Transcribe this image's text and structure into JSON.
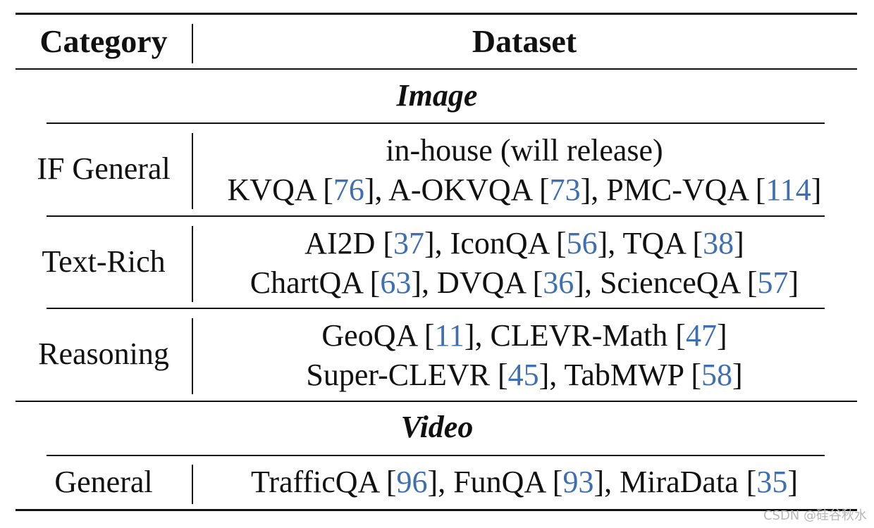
{
  "header": {
    "category": "Category",
    "dataset": "Dataset"
  },
  "sections": [
    {
      "title": "Image",
      "rows": [
        {
          "category": "IF General",
          "lines": [
            [
              {
                "t": "in-house (will release)"
              }
            ],
            [
              {
                "t": "KVQA ["
              },
              {
                "r": "76"
              },
              {
                "t": "], A-OKVQA ["
              },
              {
                "r": "73"
              },
              {
                "t": "], PMC-VQA ["
              },
              {
                "r": "114"
              },
              {
                "t": "]"
              }
            ]
          ]
        },
        {
          "category": "Text-Rich",
          "lines": [
            [
              {
                "t": "AI2D ["
              },
              {
                "r": "37"
              },
              {
                "t": "], IconQA ["
              },
              {
                "r": "56"
              },
              {
                "t": "], TQA ["
              },
              {
                "r": "38"
              },
              {
                "t": "]"
              }
            ],
            [
              {
                "t": "ChartQA ["
              },
              {
                "r": "63"
              },
              {
                "t": "], DVQA ["
              },
              {
                "r": "36"
              },
              {
                "t": "], ScienceQA ["
              },
              {
                "r": "57"
              },
              {
                "t": "]"
              }
            ]
          ]
        },
        {
          "category": "Reasoning",
          "lines": [
            [
              {
                "t": "GeoQA ["
              },
              {
                "r": "11"
              },
              {
                "t": "], CLEVR-Math ["
              },
              {
                "r": "47"
              },
              {
                "t": "]"
              }
            ],
            [
              {
                "t": "Super-CLEVR ["
              },
              {
                "r": "45"
              },
              {
                "t": "], TabMWP ["
              },
              {
                "r": "58"
              },
              {
                "t": "]"
              }
            ]
          ]
        }
      ]
    },
    {
      "title": "Video",
      "rows": [
        {
          "category": "General",
          "lines": [
            [
              {
                "t": "TrafficQA ["
              },
              {
                "r": "96"
              },
              {
                "t": "], FunQA ["
              },
              {
                "r": "93"
              },
              {
                "t": "], MiraData ["
              },
              {
                "r": "35"
              },
              {
                "t": "]"
              }
            ]
          ]
        }
      ]
    }
  ],
  "colors": {
    "text": "#111111",
    "reference": "#3e6fb0"
  },
  "watermark": "CSDN @硅谷秋水"
}
